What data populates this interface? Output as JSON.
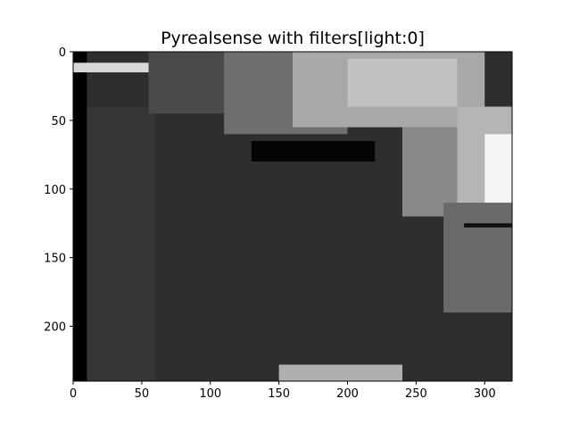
{
  "chart_data": {
    "type": "heatmap",
    "title": "Pyrealsense with filters[light:0]",
    "xlabel": "",
    "ylabel": "",
    "colormap": "gray",
    "xlim": [
      0,
      320
    ],
    "ylim": [
      240,
      0
    ],
    "x_ticks": [
      0,
      50,
      100,
      150,
      200,
      250,
      300
    ],
    "y_ticks": [
      0,
      50,
      100,
      150,
      200
    ],
    "grid": false,
    "image_description_regions": [
      {
        "x0": 0,
        "x1": 320,
        "y0": 0,
        "y1": 240,
        "shade": "#2e2e2e"
      },
      {
        "x0": 0,
        "x1": 10,
        "y0": 0,
        "y1": 240,
        "shade": "#000000"
      },
      {
        "x0": 10,
        "x1": 60,
        "y0": 40,
        "y1": 240,
        "shade": "#353535"
      },
      {
        "x0": 55,
        "x1": 120,
        "y0": 0,
        "y1": 45,
        "shade": "#4a4a4a"
      },
      {
        "x0": 110,
        "x1": 200,
        "y0": 0,
        "y1": 60,
        "shade": "#6f6f6f"
      },
      {
        "x0": 160,
        "x1": 300,
        "y0": 0,
        "y1": 55,
        "shade": "#a8a8a8"
      },
      {
        "x0": 200,
        "x1": 280,
        "y0": 5,
        "y1": 40,
        "shade": "#c2c2c2"
      },
      {
        "x0": 240,
        "x1": 320,
        "y0": 55,
        "y1": 120,
        "shade": "#8a8a8a"
      },
      {
        "x0": 280,
        "x1": 320,
        "y0": 40,
        "y1": 110,
        "shade": "#b5b5b5"
      },
      {
        "x0": 300,
        "x1": 320,
        "y0": 60,
        "y1": 110,
        "shade": "#f4f4f4"
      },
      {
        "x0": 270,
        "x1": 320,
        "y0": 110,
        "y1": 190,
        "shade": "#6a6a6a"
      },
      {
        "x0": 130,
        "x1": 220,
        "y0": 65,
        "y1": 80,
        "shade": "#050505"
      },
      {
        "x0": 0,
        "x1": 55,
        "y0": 8,
        "y1": 15,
        "shade": "#d8d8d8"
      },
      {
        "x0": 150,
        "x1": 240,
        "y0": 228,
        "y1": 240,
        "shade": "#b0b0b0"
      },
      {
        "x0": 285,
        "x1": 320,
        "y0": 125,
        "y1": 128,
        "shade": "#101010"
      }
    ]
  }
}
